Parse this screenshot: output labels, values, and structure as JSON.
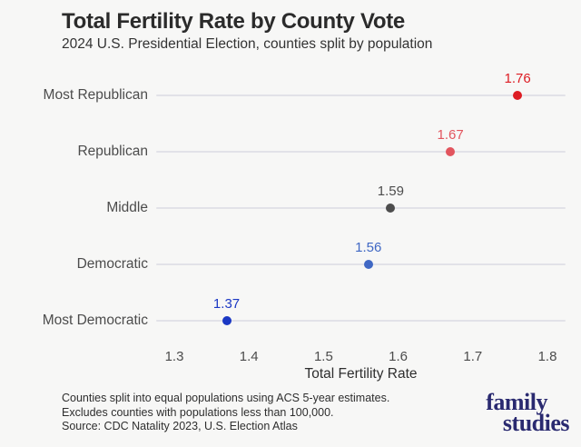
{
  "title": "Total Fertility Rate by County Vote",
  "subtitle": "2024 U.S. Presidential Election, counties split by population",
  "chart_data": {
    "type": "scatter",
    "variant": "dot-plot",
    "orientation": "horizontal",
    "categories": [
      "Most Republican",
      "Republican",
      "Middle",
      "Democratic",
      "Most Democratic"
    ],
    "values": [
      1.76,
      1.67,
      1.59,
      1.56,
      1.37
    ],
    "value_labels": [
      "1.76",
      "1.67",
      "1.59",
      "1.56",
      "1.37"
    ],
    "point_colors": [
      "#dd1c23",
      "#e2555e",
      "#4d4d4d",
      "#4068c4",
      "#1b38c4"
    ],
    "xlabel": "Total Fertility Rate",
    "xlim": [
      1.3,
      1.8
    ],
    "x_ticks": [
      1.3,
      1.4,
      1.5,
      1.6,
      1.7,
      1.8
    ],
    "x_tick_labels": [
      "1.3",
      "1.4",
      "1.5",
      "1.6",
      "1.7",
      "1.8"
    ],
    "grid": "horizontal category reference lines only",
    "legend": "none",
    "value_label_position": "above points"
  },
  "footer": {
    "lines": [
      "Counties split into equal populations using ACS 5-year estimates.",
      "Excludes counties with populations less than 100,000.",
      "Source: CDC Natality 2023, U.S. Election Atlas"
    ]
  },
  "logo": {
    "line1": "family",
    "line2": "studies",
    "color": "#2a2a70"
  },
  "colors": {
    "background": "#f7f7f6",
    "grid_line": "#e2e2e8",
    "title_text": "#2b2b2b",
    "label_text": "#4c4c4c"
  }
}
